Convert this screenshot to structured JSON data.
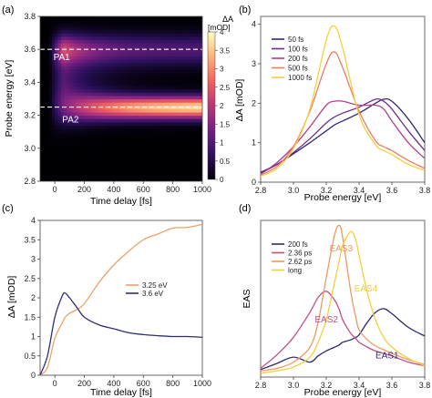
{
  "chart_data": [
    {
      "panel": "(a)",
      "type": "heatmap",
      "xlabel": "Time delay [fs]",
      "ylabel": "Probe energy [eV]",
      "xlim": [
        -100,
        1000
      ],
      "ylim": [
        2.8,
        3.8
      ],
      "xticks": [
        0,
        200,
        400,
        600,
        800,
        1000
      ],
      "yticks": [
        2.8,
        3.0,
        3.2,
        3.4,
        3.6,
        3.8
      ],
      "colorbar": {
        "title": "ΔA",
        "unit": "[mOD]",
        "range": [
          0,
          4
        ],
        "ticks": [
          0,
          0.5,
          1,
          1.5,
          2,
          2.5,
          3,
          3.5,
          4
        ]
      },
      "colormap": [
        "#000004",
        "#2c115f",
        "#721f81",
        "#b73779",
        "#f1605d",
        "#feb078",
        "#fcfdbf"
      ],
      "marker_lines": [
        {
          "energy": 3.6,
          "label": "PA1"
        },
        {
          "energy": 3.25,
          "label": "PA2"
        }
      ],
      "features": {
        "PA1": {
          "energy": 3.6,
          "peak_delay": 60,
          "peak": 2.1,
          "late_level": 1.0,
          "width": 0.09
        },
        "PA2": {
          "energy": 3.25,
          "rise_end": 900,
          "late_level": 3.9,
          "width": 0.065
        }
      }
    },
    {
      "panel": "(b)",
      "type": "line",
      "xlabel": "Probe energy [eV]",
      "ylabel": "ΔA [mOD]",
      "xlim": [
        2.8,
        3.8
      ],
      "ylim": [
        0,
        4.2
      ],
      "xticks": [
        2.8,
        3.0,
        3.2,
        3.4,
        3.6,
        3.8
      ],
      "yticks": [
        0,
        1,
        2,
        3,
        4
      ],
      "x": [
        2.8,
        2.9,
        3.0,
        3.1,
        3.2,
        3.25,
        3.3,
        3.4,
        3.5,
        3.55,
        3.6,
        3.7,
        3.8
      ],
      "series": [
        {
          "name": "50 fs",
          "color": "#2e2a72",
          "values": [
            0.25,
            0.45,
            0.72,
            1.0,
            1.3,
            1.45,
            1.55,
            1.75,
            2.0,
            2.1,
            2.05,
            1.6,
            1.0
          ]
        },
        {
          "name": "100 fs",
          "color": "#6e2d8a",
          "values": [
            0.22,
            0.45,
            0.75,
            1.1,
            1.5,
            1.65,
            1.75,
            1.9,
            2.1,
            2.05,
            1.85,
            1.3,
            0.8
          ]
        },
        {
          "name": "200 fs",
          "color": "#b2408a",
          "values": [
            0.2,
            0.5,
            0.9,
            1.4,
            1.95,
            2.05,
            2.05,
            1.95,
            1.95,
            1.85,
            1.55,
            1.0,
            0.6
          ]
        },
        {
          "name": "500 fs",
          "color": "#f07a63",
          "values": [
            0.18,
            0.4,
            0.9,
            1.8,
            3.0,
            3.3,
            2.9,
            1.8,
            1.05,
            0.9,
            0.8,
            0.55,
            0.35
          ]
        },
        {
          "name": "1000 fs",
          "color": "#f6cf3c",
          "values": [
            0.15,
            0.35,
            0.85,
            1.85,
            3.6,
            3.95,
            3.4,
            1.7,
            0.95,
            0.8,
            0.7,
            0.45,
            0.3
          ]
        }
      ],
      "legend": "upper-left"
    },
    {
      "panel": "(c)",
      "type": "line",
      "xlabel": "Time delay [fs]",
      "ylabel": "ΔA [mOD]",
      "xlim": [
        -100,
        1000
      ],
      "ylim": [
        0,
        4
      ],
      "xticks": [
        0,
        200,
        400,
        600,
        800,
        1000
      ],
      "yticks": [
        0,
        0.5,
        1,
        1.5,
        2,
        2.5,
        3,
        3.5,
        4
      ],
      "x": [
        -100,
        -50,
        0,
        50,
        70,
        100,
        150,
        200,
        300,
        400,
        500,
        600,
        700,
        800,
        900,
        1000
      ],
      "series": [
        {
          "name": "3.25 eV",
          "color": "#eaa164",
          "values": [
            0.0,
            0.2,
            0.95,
            1.35,
            1.5,
            1.6,
            1.7,
            1.85,
            2.4,
            2.85,
            3.2,
            3.5,
            3.65,
            3.8,
            3.82,
            3.9
          ]
        },
        {
          "name": "3.6 eV",
          "color": "#302d77",
          "values": [
            0.0,
            0.5,
            1.5,
            2.05,
            2.12,
            2.0,
            1.75,
            1.5,
            1.3,
            1.2,
            1.1,
            1.05,
            1.02,
            1.0,
            1.0,
            0.98
          ]
        }
      ],
      "legend": "center-right"
    },
    {
      "panel": "(d)",
      "type": "line",
      "xlabel": "Probe energy [eV]",
      "ylabel": "EAS",
      "xlim": [
        2.8,
        3.8
      ],
      "ylim": [
        0,
        6.3
      ],
      "xticks": [
        2.8,
        3.0,
        3.2,
        3.4,
        3.6,
        3.8
      ],
      "x": [
        2.8,
        2.9,
        3.0,
        3.1,
        3.15,
        3.2,
        3.25,
        3.28,
        3.3,
        3.35,
        3.38,
        3.4,
        3.45,
        3.5,
        3.55,
        3.6,
        3.7,
        3.8
      ],
      "series": [
        {
          "name": "200 fs",
          "color": "#2d2a72",
          "values": [
            0.3,
            0.55,
            0.8,
            0.6,
            0.85,
            1.05,
            1.2,
            1.3,
            1.4,
            1.5,
            1.6,
            1.7,
            2.2,
            2.6,
            2.75,
            2.55,
            2.0,
            1.65
          ]
        },
        {
          "name": "2.36 ps",
          "color": "#c04f86",
          "values": [
            0.35,
            0.9,
            1.6,
            2.6,
            3.2,
            3.45,
            3.1,
            2.7,
            2.3,
            1.75,
            1.55,
            1.4,
            1.2,
            1.05,
            0.95,
            0.85,
            0.6,
            0.45
          ]
        },
        {
          "name": "2.62 ps",
          "color": "#ee9960",
          "values": [
            0.25,
            0.35,
            0.6,
            1.2,
            2.2,
            4.0,
            5.7,
            6.1,
            5.6,
            3.4,
            2.4,
            1.9,
            1.5,
            1.25,
            1.1,
            0.95,
            0.7,
            0.5
          ]
        },
        {
          "name": "long",
          "color": "#f4cf3a",
          "values": [
            0.15,
            0.25,
            0.4,
            0.8,
            1.4,
            2.3,
            3.8,
            4.7,
            5.3,
            5.85,
            5.5,
            4.9,
            3.4,
            2.3,
            1.6,
            1.2,
            0.75,
            0.45
          ]
        }
      ],
      "annotations": [
        "EAS1",
        "EAS2",
        "EAS3",
        "EAS4"
      ],
      "legend": "upper-left"
    }
  ]
}
